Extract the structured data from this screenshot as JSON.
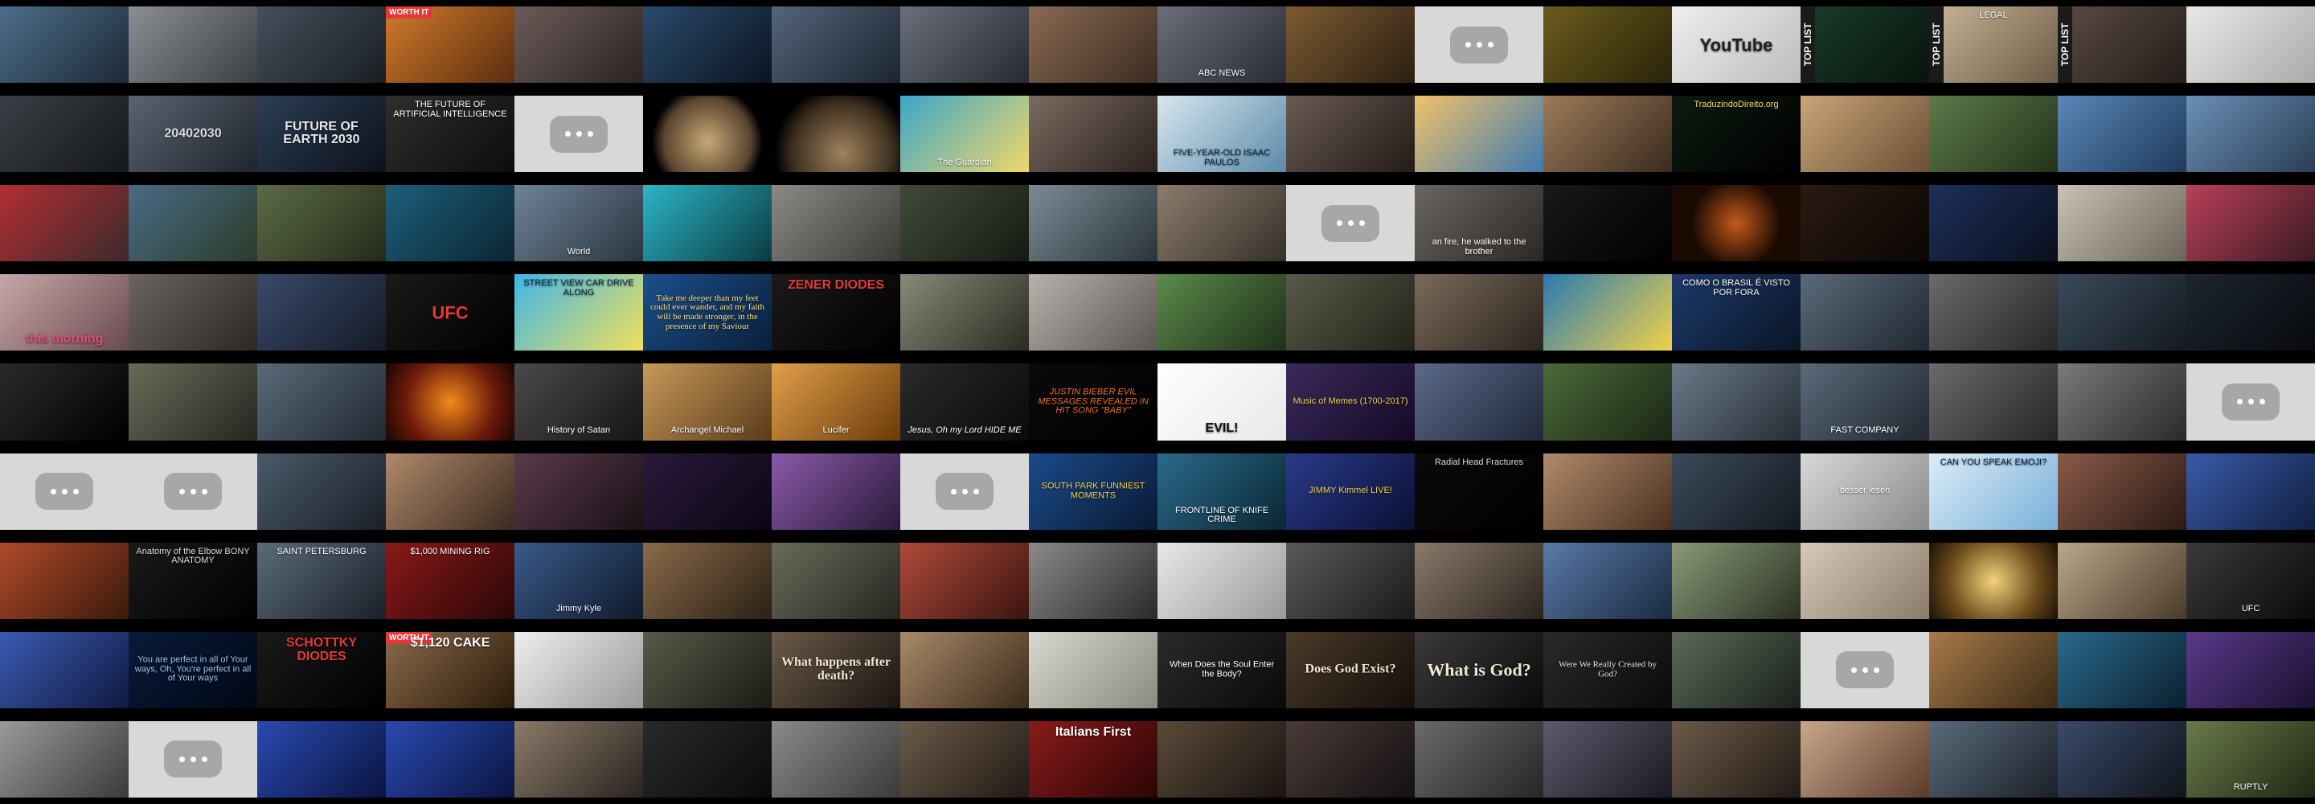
{
  "placeholder_icon": "chat-bubble-ellipsis-icon",
  "rows": [
    [
      {
        "bg": "linear-gradient(135deg,#4d6d8a,#1d2a36)"
      },
      {
        "bg": "linear-gradient(135deg,#8b8f93,#3b3f44)"
      },
      {
        "bg": "linear-gradient(135deg,#44505c,#1a1e22)"
      },
      {
        "bg": "linear-gradient(135deg,#d07b2b,#5a2d10)",
        "badge": "WORTH IT"
      },
      {
        "bg": "linear-gradient(135deg,#6a5b58,#2b2322)"
      },
      {
        "bg": "linear-gradient(135deg,#2a4a6b,#0b1420)"
      },
      {
        "bg": "linear-gradient(135deg,#546579,#1b2431)"
      },
      {
        "bg": "linear-gradient(135deg,#6a6f7a,#262a33)"
      },
      {
        "bg": "linear-gradient(135deg,#8a6a52,#3b2c22)"
      },
      {
        "bg": "linear-gradient(135deg,#6b6e7a,#2a2c33)",
        "caption": "ABC NEWS",
        "pos": "bottom",
        "size": "small",
        "color": "#fff"
      },
      {
        "bg": "linear-gradient(135deg,#7c5a32,#2b1f12)"
      },
      {
        "placeholder": true
      },
      {
        "bg": "linear-gradient(135deg,#6a5b1e,#2a2408)"
      },
      {
        "bg": "linear-gradient(135deg,#eeeeee,#bdbdbd)",
        "caption": "YouTube",
        "pos": "center",
        "size": "big",
        "color": "#222"
      },
      {
        "bg": "linear-gradient(135deg,#1a3d2a,#07140d)",
        "vlabel": "TOP LIST"
      },
      {
        "bg": "linear-gradient(135deg,#c9b79a,#6b5a44)",
        "vlabel": "TOP LIST",
        "caption": "LEGAL",
        "pos": "top",
        "size": "small",
        "color": "#fff"
      },
      {
        "bg": "linear-gradient(135deg,#5b4b44,#241d1a)",
        "vlabel": "TOP LIST"
      },
      {
        "bg": "linear-gradient(135deg,#e8e8e8,#aaaaaa)"
      }
    ],
    [
      {
        "bg": "linear-gradient(135deg,#3a3f45,#15181b)"
      },
      {
        "bg": "linear-gradient(135deg,#5a6472,#1f242b)",
        "caption": "20402030",
        "pos": "center",
        "size": "med",
        "color": "#ddd"
      },
      {
        "bg": "linear-gradient(135deg,#2c3d55,#0c121b)",
        "caption": "FUTURE OF EARTH 2030",
        "pos": "center",
        "size": "med",
        "color": "#e8e8e8"
      },
      {
        "bg": "linear-gradient(135deg,#2e2e2e,#0d0d0d)",
        "caption": "THE FUTURE OF ARTIFICIAL INTELLIGENCE",
        "pos": "top",
        "size": "small",
        "color": "#fff"
      },
      {
        "placeholder": true
      },
      {
        "bg": "radial-gradient(circle at 50% 60%,#c7a875,#5a4530 55%,#000 70%)"
      },
      {
        "bg": "radial-gradient(circle at 55% 75%,#a0825c,#3d2f20 55%,#000 75%)"
      },
      {
        "bg": "linear-gradient(135deg,#3aa7c8,#f0d76a)",
        "caption": "The Guardian",
        "pos": "bottom",
        "size": "small",
        "color": "#fff"
      },
      {
        "bg": "linear-gradient(135deg,#7a6a60,#2a221d)"
      },
      {
        "bg": "linear-gradient(135deg,#d7e6ef,#5b8aa8)",
        "caption": "FIVE-YEAR-OLD ISAAC PAULOS",
        "pos": "bottom",
        "size": "small",
        "color": "#0b2a4a"
      },
      {
        "bg": "linear-gradient(135deg,#6a5a52,#221b18)"
      },
      {
        "bg": "linear-gradient(135deg,#f0c26a,#3f7ab0)"
      },
      {
        "bg": "linear-gradient(135deg,#9d7b5a,#3a2a1e)"
      },
      {
        "bg": "linear-gradient(135deg,#0d1a10,#000)",
        "caption": "TraduzindoDireito.org",
        "pos": "top",
        "size": "small",
        "color": "#ffd84a"
      },
      {
        "bg": "linear-gradient(135deg,#c9a57a,#6a4f34)"
      },
      {
        "bg": "linear-gradient(135deg,#5b7a4b,#243319)"
      },
      {
        "bg": "linear-gradient(135deg,#5b87b8,#1f3a5a)"
      },
      {
        "bg": "linear-gradient(135deg,#6b8fb5,#2a3e55)"
      }
    ],
    [
      {
        "bg": "linear-gradient(135deg,#b32e34,#3b2a2a)"
      },
      {
        "bg": "linear-gradient(135deg,#4a6b86,#2a3c2a)"
      },
      {
        "bg": "linear-gradient(135deg,#5c6a47,#232a18)"
      },
      {
        "bg": "linear-gradient(135deg,#1d5e7a,#0a2633)"
      },
      {
        "bg": "linear-gradient(135deg,#6e8397,#2a3540)",
        "caption": "World",
        "pos": "bottom",
        "size": "small",
        "color": "#fff"
      },
      {
        "bg": "linear-gradient(135deg,#2bb6c7,#0c3a40)"
      },
      {
        "bg": "linear-gradient(135deg,#8b8a86,#3c3a36)"
      },
      {
        "bg": "linear-gradient(135deg,#404a3a,#151a12)"
      },
      {
        "bg": "linear-gradient(135deg,#7b8b95,#2a343a)"
      },
      {
        "bg": "linear-gradient(135deg,#8c7c6c,#35302a)"
      },
      {
        "placeholder": true
      },
      {
        "bg": "linear-gradient(135deg,#6a6560,#2a2725)",
        "caption": "an fire, he walked to the brother",
        "pos": "bottom",
        "size": "small",
        "color": "#fff"
      },
      {
        "bg": "linear-gradient(135deg,#191919,#000)"
      },
      {
        "bg": "radial-gradient(circle at 50% 50%,#c45a1a,#1a0a02 60%)"
      },
      {
        "bg": "linear-gradient(135deg,#2a1a12,#0a0604)"
      },
      {
        "bg": "linear-gradient(135deg,#1d2f5a,#0a0f1d)"
      },
      {
        "bg": "linear-gradient(135deg,#c9c2b5,#6a645a)"
      },
      {
        "bg": "linear-gradient(135deg,#b8405a,#3a1a22)"
      }
    ],
    [
      {
        "bg": "linear-gradient(135deg,#c7a7a7,#6a4a50)",
        "caption": "this morning",
        "pos": "bottom",
        "size": "med",
        "color": "#e8487d"
      },
      {
        "bg": "linear-gradient(135deg,#6b6560,#2a2725)"
      },
      {
        "bg": "linear-gradient(135deg,#3a4a6a,#141a26)"
      },
      {
        "bg": "linear-gradient(135deg,#1a1a1a,#000)",
        "caption": "UFC",
        "pos": "center",
        "size": "big",
        "color": "#e53935"
      },
      {
        "bg": "linear-gradient(135deg,#3fb6e8,#f2e05a)",
        "caption": "STREET VIEW CAR DRIVE ALONG",
        "pos": "top",
        "size": "small",
        "color": "#0b2a4a"
      },
      {
        "bg": "linear-gradient(135deg,#1b4f8a,#0a1f3a)",
        "caption": "Take me deeper than my feet could ever wander, and my faith will be made stronger, in the presence of my Saviour",
        "pos": "center",
        "size": "small",
        "color": "#ffe27a",
        "serif": true
      },
      {
        "bg": "linear-gradient(135deg,#1a1a1a,#000)",
        "caption": "ZENER DIODES",
        "pos": "top",
        "size": "med",
        "color": "#e53935"
      },
      {
        "bg": "linear-gradient(135deg,#8a8a7a,#2a2a20)"
      },
      {
        "bg": "linear-gradient(135deg,#b7b2ad,#5a5550)"
      },
      {
        "bg": "linear-gradient(135deg,#5b8a4a,#1f2f1a)"
      },
      {
        "bg": "linear-gradient(135deg,#5a5a4a,#222218)"
      },
      {
        "bg": "linear-gradient(135deg,#7a6a5a,#2b241e)"
      },
      {
        "bg": "linear-gradient(135deg,#2a7ab0,#f2d24a)"
      },
      {
        "bg": "linear-gradient(135deg,#1d3a6a,#0a1426)",
        "caption": "COMO O BRASIL É VISTO POR FORA",
        "pos": "top",
        "size": "small",
        "color": "#fff"
      },
      {
        "bg": "linear-gradient(135deg,#5a6a7a,#202830)"
      },
      {
        "bg": "linear-gradient(135deg,#6a6a6a,#262626)"
      },
      {
        "bg": "linear-gradient(135deg,#3a4a5a,#141a20)"
      },
      {
        "bg": "linear-gradient(135deg,#1d2530,#080a0d)"
      }
    ],
    [
      {
        "bg": "linear-gradient(135deg,#2a2a2a,#000)"
      },
      {
        "bg": "linear-gradient(135deg,#6a6a5a,#262620)"
      },
      {
        "bg": "linear-gradient(135deg,#5a6a7a,#202830)"
      },
      {
        "bg": "radial-gradient(circle at 50% 50%,#f28a1a,#6a1a0a 60%,#1a0502)"
      },
      {
        "bg": "linear-gradient(135deg,#4a4a4a,#151515)",
        "caption": "History of Satan",
        "pos": "bottom",
        "size": "small",
        "color": "#fff"
      },
      {
        "bg": "linear-gradient(135deg,#c79a5a,#5a3a1a)",
        "caption": "Archangel Michael",
        "pos": "bottom",
        "size": "small",
        "color": "#fff"
      },
      {
        "bg": "linear-gradient(135deg,#e0a04a,#6a3a0a)",
        "caption": "Lucifer",
        "pos": "bottom",
        "size": "small",
        "color": "#fff"
      },
      {
        "bg": "linear-gradient(135deg,#2a2a2a,#0a0a0a)",
        "caption": "Jesus, Oh my Lord HIDE ME",
        "pos": "bottom",
        "size": "small",
        "color": "#fff",
        "italic": true
      },
      {
        "bg": "linear-gradient(135deg,#0a0a0a,#000)",
        "caption": "JUSTIN BIEBER EVIL MESSAGES REVEALED IN HIT SONG \"BABY\"",
        "pos": "center",
        "size": "small",
        "color": "#f2701a",
        "italic": true
      },
      {
        "bg": "linear-gradient(135deg,#ffffff,#e8e8e8)",
        "caption": "EVIL!",
        "pos": "bottom",
        "size": "med",
        "color": "#111"
      },
      {
        "bg": "linear-gradient(135deg,#3a2a5a,#140a26)",
        "caption": "Music of Memes (1700-2017)",
        "pos": "center",
        "size": "small",
        "color": "#f2d24a"
      },
      {
        "bg": "linear-gradient(135deg,#5a6a8a,#202838)"
      },
      {
        "bg": "linear-gradient(135deg,#4a6a3a,#1a2614)"
      },
      {
        "bg": "linear-gradient(135deg,#6a7a8a,#262c33)"
      },
      {
        "bg": "linear-gradient(135deg,#5a6a7a,#202830)",
        "caption": "FAST COMPANY",
        "pos": "bottom",
        "size": "small",
        "color": "#fff"
      },
      {
        "bg": "linear-gradient(135deg,#6a6a6a,#262626)"
      },
      {
        "bg": "linear-gradient(135deg,#7a7a7a,#2a2a2a)"
      },
      {
        "placeholder": true
      }
    ],
    [
      {
        "placeholder": true
      },
      {
        "placeholder": true
      },
      {
        "bg": "linear-gradient(135deg,#4a5a6a,#1a2028)"
      },
      {
        "bg": "linear-gradient(135deg,#b08a6a,#3a2a20)"
      },
      {
        "bg": "linear-gradient(135deg,#5a3a4a,#1a1016)"
      },
      {
        "bg": "linear-gradient(135deg,#2a1a3a,#0a0614)"
      },
      {
        "bg": "linear-gradient(135deg,#8a5aa8,#2a1a3a)"
      },
      {
        "placeholder": true
      },
      {
        "bg": "linear-gradient(135deg,#1a4a8a,#0a1a33)",
        "caption": "SOUTH PARK FUNNIEST MOMENTS",
        "pos": "center",
        "size": "small",
        "color": "#f2d24a"
      },
      {
        "bg": "linear-gradient(135deg,#2a6a8a,#0a2633)",
        "caption": "FRONTLINE OF KNIFE CRIME",
        "pos": "bottom",
        "size": "small",
        "color": "#fff"
      },
      {
        "bg": "linear-gradient(135deg,#2a3a8a,#0a1033)",
        "caption": "JIMMY Kimmel LIVE!",
        "pos": "center",
        "size": "small",
        "color": "#f2d24a"
      },
      {
        "bg": "linear-gradient(135deg,#0a0a0a,#000)",
        "caption": "Radial Head Fractures",
        "pos": "top",
        "size": "small",
        "color": "#ddd"
      },
      {
        "bg": "linear-gradient(135deg,#b08a6a,#4a3020)"
      },
      {
        "bg": "linear-gradient(135deg,#3a4a5a,#141a20)"
      },
      {
        "bg": "linear-gradient(135deg,#d8d8d8,#8a8a8a)",
        "caption": "besser lesen",
        "pos": "center",
        "size": "small",
        "color": "#fff"
      },
      {
        "bg": "linear-gradient(135deg,#dcecf8,#7ab0d8)",
        "caption": "CAN YOU SPEAK EMOJI?",
        "pos": "top",
        "size": "small",
        "color": "#0b2a4a"
      },
      {
        "bg": "linear-gradient(135deg,#8a5a4a,#2a1a14)"
      },
      {
        "bg": "linear-gradient(135deg,#3a5aa8,#102040)"
      }
    ],
    [
      {
        "bg": "linear-gradient(135deg,#b04a2a,#3a1a0a)"
      },
      {
        "bg": "linear-gradient(135deg,#1a1a1a,#000)",
        "caption": "Anatomy of the Elbow BONY ANATOMY",
        "pos": "top",
        "size": "small",
        "color": "#ddd"
      },
      {
        "bg": "linear-gradient(135deg,#5a6a7a,#1a2028)",
        "caption": "SAINT PETERSBURG",
        "pos": "top",
        "size": "small",
        "color": "#fff"
      },
      {
        "bg": "linear-gradient(135deg,#8a1a1a,#2a0606)",
        "caption": "$1,000 MINING RIG",
        "pos": "top",
        "size": "small",
        "color": "#fff"
      },
      {
        "bg": "linear-gradient(135deg,#3a5a8a,#101a2a)",
        "caption": "Jimmy Kyle",
        "pos": "bottom",
        "size": "small",
        "color": "#fff"
      },
      {
        "bg": "linear-gradient(135deg,#8a6a4a,#2a2014)"
      },
      {
        "bg": "linear-gradient(135deg,#6a6a5a,#262620)"
      },
      {
        "bg": "linear-gradient(135deg,#b04a3a,#3a1410)"
      },
      {
        "bg": "linear-gradient(135deg,#8a8a8a,#2a2a2a)"
      },
      {
        "bg": "linear-gradient(135deg,#e8e8e8,#9a9a9a)"
      },
      {
        "bg": "linear-gradient(135deg,#5a5a5a,#1a1a1a)"
      },
      {
        "bg": "linear-gradient(135deg,#8a7a6a,#2a241e)"
      },
      {
        "bg": "linear-gradient(135deg,#5a7aa8,#1a2a40)"
      },
      {
        "bg": "linear-gradient(135deg,#8a9a7a,#2a3020)"
      },
      {
        "bg": "linear-gradient(135deg,#d8c8b8,#8a7a6a)"
      },
      {
        "bg": "radial-gradient(circle at 50% 50%,#f2d27a,#6a4a1a 60%,#1a1006)"
      },
      {
        "bg": "linear-gradient(135deg,#b8a88a,#4a3a2a)"
      },
      {
        "bg": "linear-gradient(135deg,#3a3a3a,#0a0a0a)",
        "caption": "UFC",
        "pos": "bottom",
        "size": "small",
        "color": "#fff"
      }
    ],
    [
      {
        "bg": "linear-gradient(135deg,#3a5ab0,#101a40)"
      },
      {
        "bg": "linear-gradient(135deg,#0a1a3a,#000814)",
        "caption": "You are perfect in all of Your ways, Oh, You're perfect in all of Your ways",
        "pos": "center",
        "size": "small",
        "color": "#9ac8f2"
      },
      {
        "bg": "linear-gradient(135deg,#1a1a1a,#000)",
        "caption": "SCHOTTKY DIODES",
        "pos": "top",
        "size": "med",
        "color": "#e53935"
      },
      {
        "bg": "linear-gradient(135deg,#8a6a4a,#2a1a0a)",
        "caption": "$1,120 CAKE",
        "pos": "top",
        "size": "med",
        "color": "#fff",
        "badge": "WORTH IT"
      },
      {
        "bg": "linear-gradient(135deg,#eeeeee,#9a9a9a)"
      },
      {
        "bg": "linear-gradient(135deg,#5a5a4a,#1a1a14)"
      },
      {
        "bg": "linear-gradient(135deg,#6a5a4a,#1a1410)",
        "caption": "What happens after death?",
        "pos": "center",
        "size": "med",
        "color": "#f2e8d0",
        "serif": true
      },
      {
        "bg": "linear-gradient(135deg,#a88a6a,#3a2a1a)"
      },
      {
        "bg": "linear-gradient(135deg,#d8d8d0,#8a8a80)"
      },
      {
        "bg": "linear-gradient(135deg,#2a2a2a,#0a0a0a)",
        "caption": "When Does the Soul Enter the Body?",
        "pos": "center",
        "size": "small",
        "color": "#fff"
      },
      {
        "bg": "linear-gradient(135deg,#4a3a2a,#140e0a)",
        "caption": "Does God Exist?",
        "pos": "center",
        "size": "med",
        "color": "#f2e8d0",
        "serif": true
      },
      {
        "bg": "linear-gradient(135deg,#3a3a3a,#0a0a0a)",
        "caption": "What is God?",
        "pos": "center",
        "size": "big",
        "color": "#f2e8d0",
        "serif": true
      },
      {
        "bg": "linear-gradient(135deg,#2a2a2a,#0a0a0a)",
        "caption": "Were We Really Created by God?",
        "pos": "center",
        "size": "small",
        "color": "#f2e8d0",
        "serif": true
      },
      {
        "bg": "linear-gradient(135deg,#5a6a5a,#1a201a)"
      },
      {
        "placeholder": true
      },
      {
        "bg": "linear-gradient(135deg,#a87a4a,#3a2a14)"
      },
      {
        "bg": "linear-gradient(135deg,#2a6a8a,#0a2030)"
      },
      {
        "bg": "linear-gradient(135deg,#5a3a8a,#1a1030)"
      }
    ],
    [
      {
        "bg": "linear-gradient(135deg,#9a9a9a,#3a3a3a)"
      },
      {
        "placeholder": true
      },
      {
        "bg": "linear-gradient(135deg,#2a4ab0,#0a1440)"
      },
      {
        "bg": "linear-gradient(135deg,#2a4ab0,#0a1440)"
      },
      {
        "bg": "linear-gradient(135deg,#8a7a6a,#2a241e)"
      },
      {
        "bg": "linear-gradient(135deg,#2a2a2a,#0a0a0a)"
      },
      {
        "bg": "linear-gradient(135deg,#8a8a8a,#3a3a3a)"
      },
      {
        "bg": "linear-gradient(135deg,#6a5a4a,#221a14)"
      },
      {
        "bg": "linear-gradient(135deg,#8a1a1a,#2a0606)",
        "caption": "Italians First",
        "pos": "top",
        "size": "med",
        "color": "#fff"
      },
      {
        "bg": "linear-gradient(135deg,#5a4a3a,#1a1410)"
      },
      {
        "bg": "linear-gradient(135deg,#4a3a3a,#141010)"
      },
      {
        "bg": "linear-gradient(135deg,#6a6a6a,#262626)"
      },
      {
        "bg": "linear-gradient(135deg,#5a5a6a,#1a1a24)"
      },
      {
        "bg": "linear-gradient(135deg,#6a5a4a,#221a14)"
      },
      {
        "bg": "linear-gradient(135deg,#c8a88a,#5a3a2a)"
      },
      {
        "bg": "linear-gradient(135deg,#5a6a7a,#1a2028)"
      },
      {
        "bg": "linear-gradient(135deg,#3a4a6a,#10141a)"
      },
      {
        "bg": "linear-gradient(135deg,#6a7a4a,#202614)",
        "caption": "RUPTLY",
        "pos": "bottom",
        "size": "small",
        "color": "#fff"
      }
    ]
  ]
}
